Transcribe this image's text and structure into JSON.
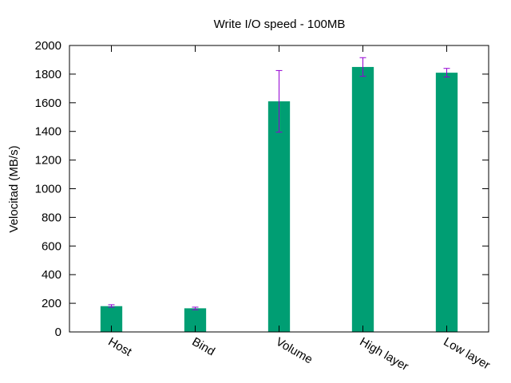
{
  "chart_data": {
    "type": "bar",
    "title": "Write I/O speed - 100MB",
    "xlabel": "",
    "ylabel": "Velocitad (MB/s)",
    "ylim": [
      0,
      2000
    ],
    "yticks": [
      0,
      200,
      400,
      600,
      800,
      1000,
      1200,
      1400,
      1600,
      1800,
      2000
    ],
    "categories": [
      "Host",
      "Bind",
      "Volume",
      "High layer",
      "Low layer"
    ],
    "values": [
      180,
      165,
      1610,
      1850,
      1810
    ],
    "error_low": [
      173,
      155,
      1395,
      1785,
      1780
    ],
    "error_high": [
      190,
      173,
      1825,
      1915,
      1840
    ],
    "grid": false,
    "legend": "none",
    "colors": {
      "bar": "#009e73",
      "error": "#9400d3",
      "axis": "#000000"
    }
  }
}
